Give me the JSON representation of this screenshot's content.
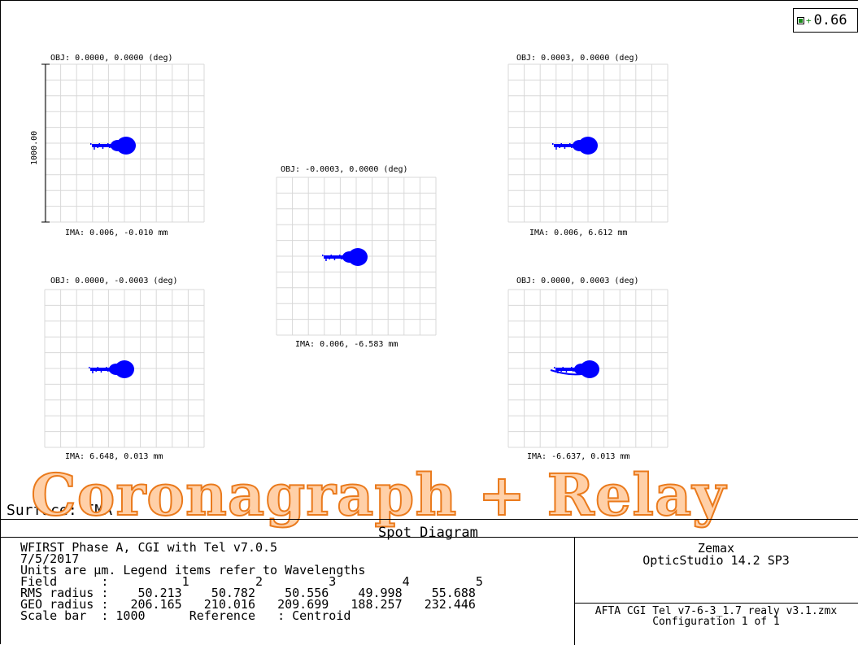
{
  "legend": {
    "wavelength_label": "0.66",
    "color_hex": "#1a8a1a"
  },
  "scale_bar_label": "1000.00",
  "fields": [
    {
      "obj": "OBJ: 0.0000, 0.0000 (deg)",
      "ima": "IMA: 0.006, -0.010 mm"
    },
    {
      "obj": "OBJ: 0.0003, 0.0000 (deg)",
      "ima": "IMA: 0.006, 6.612 mm"
    },
    {
      "obj": "OBJ: -0.0003, 0.0000 (deg)",
      "ima": "IMA: 0.006, -6.583 mm"
    },
    {
      "obj": "OBJ: 0.0000, -0.0003 (deg)",
      "ima": "IMA: 6.648, 0.013 mm"
    },
    {
      "obj": "OBJ: 0.0000, 0.0003 (deg)",
      "ima": "IMA: -6.637, 0.013 mm"
    }
  ],
  "overlay_title": "Coronagraph + Relay",
  "surface_label": "Surface: IMA",
  "info": {
    "title": "Spot Diagram",
    "line1": "WFIRST Phase A, CGI with Tel v7.0.5",
    "line2": "7/5/2017",
    "line3": "Units are µm. Legend items refer to Wavelengths",
    "line4": "Field      :          1         2         3         4         5",
    "line5": "RMS radius :    50.213    50.782    50.556    49.998    55.688",
    "line6": "GEO radius :   206.165   210.016   209.699   188.257   232.446",
    "line7": "Scale bar  : 1000      Reference   : Centroid",
    "vendor": "Zemax",
    "product": "OpticStudio 14.2 SP3",
    "file": "AFTA CGI Tel v7-6-3_1.7 realy v3.1.zmx",
    "configuration": "Configuration 1 of 1"
  },
  "colors": {
    "spot": "#0000ff",
    "grid": "#d8d8d8",
    "title_fill": "#ffd0a8",
    "title_stroke": "#ea7a1c"
  }
}
